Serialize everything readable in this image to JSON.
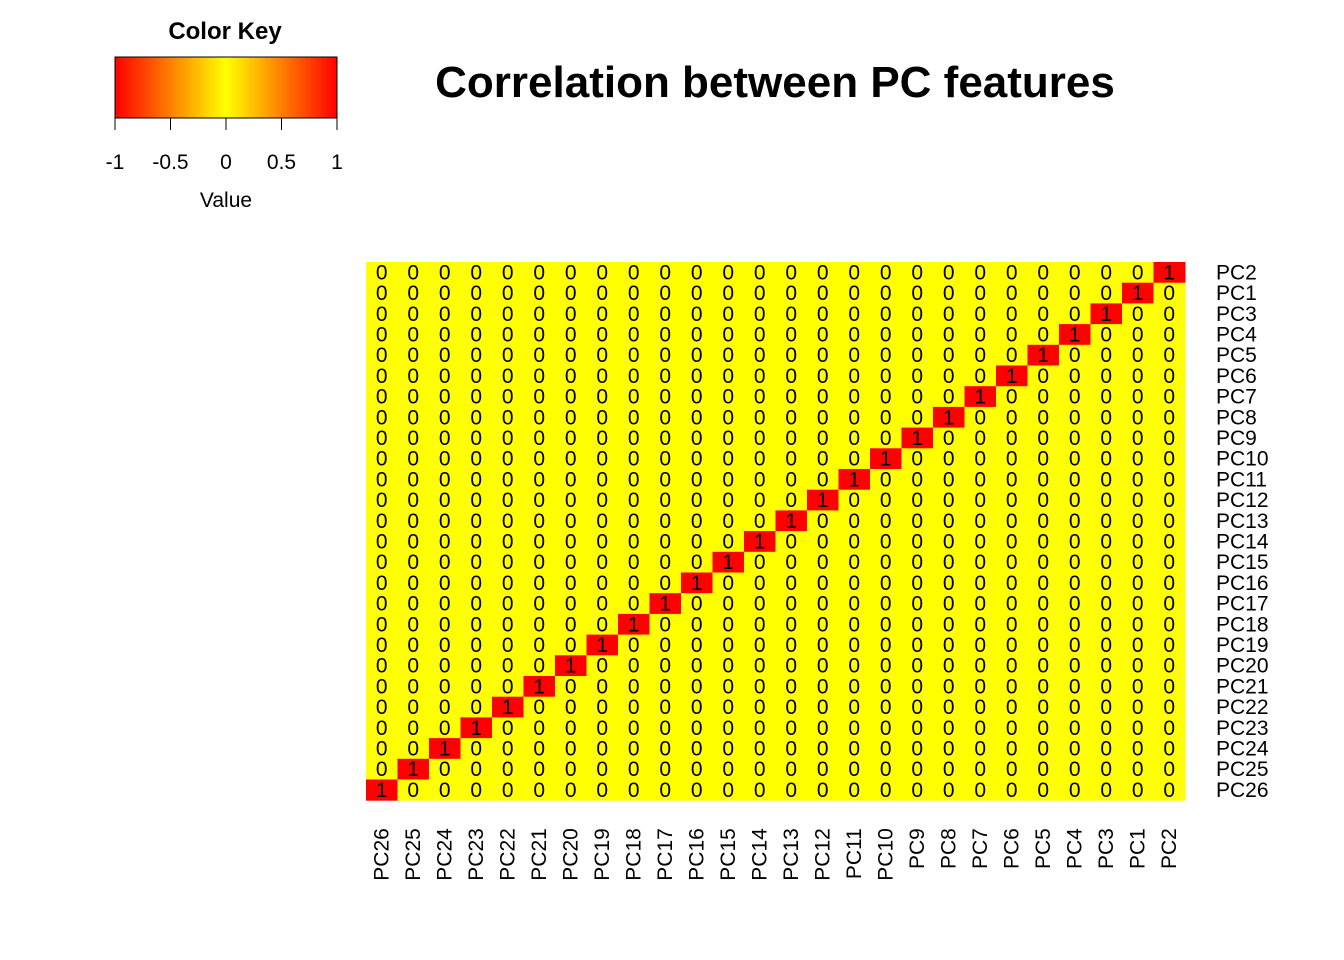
{
  "chart_data": {
    "type": "heatmap",
    "title": "Correlation between PC features",
    "rows": [
      "PC2",
      "PC1",
      "PC3",
      "PC4",
      "PC5",
      "PC6",
      "PC7",
      "PC8",
      "PC9",
      "PC10",
      "PC11",
      "PC12",
      "PC13",
      "PC14",
      "PC15",
      "PC16",
      "PC17",
      "PC18",
      "PC19",
      "PC20",
      "PC21",
      "PC22",
      "PC23",
      "PC24",
      "PC25",
      "PC26"
    ],
    "columns": [
      "PC26",
      "PC25",
      "PC24",
      "PC23",
      "PC22",
      "PC21",
      "PC20",
      "PC19",
      "PC18",
      "PC17",
      "PC16",
      "PC15",
      "PC14",
      "PC13",
      "PC12",
      "PC11",
      "PC10",
      "PC9",
      "PC8",
      "PC7",
      "PC6",
      "PC5",
      "PC4",
      "PC3",
      "PC1",
      "PC2"
    ],
    "values": "correlation matrix: 1 where row label equals column label, 0 elsewhere",
    "color_scale": {
      "min": -1,
      "max": 1,
      "low_color": "#ff0000",
      "mid_color": "#ffff00",
      "high_color": "#ff0000"
    },
    "color_key": {
      "title": "Color Key",
      "xlabel": "Value",
      "ticks": [
        "-1",
        "-0.5",
        "0",
        "0.5",
        "1"
      ],
      "tick_values": [
        -1,
        -0.5,
        0,
        0.5,
        1
      ]
    }
  }
}
